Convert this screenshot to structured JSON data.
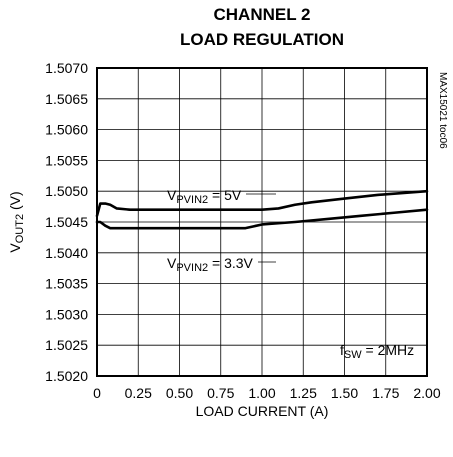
{
  "chart_data": {
    "type": "line",
    "title": [
      "CHANNEL 2",
      "LOAD REGULATION"
    ],
    "xlabel": "LOAD CURRENT (A)",
    "ylabel": {
      "main": "V",
      "sub": "OUT2",
      "unit": " (V)"
    },
    "xlim": [
      0,
      2.0
    ],
    "ylim": [
      1.502,
      1.507
    ],
    "xticks": [
      0,
      0.25,
      0.5,
      0.75,
      1.0,
      1.25,
      1.5,
      1.75,
      2.0
    ],
    "xtick_labels": [
      "0",
      "0.25",
      "0.50",
      "0.75",
      "1.00",
      "1.25",
      "1.50",
      "1.75",
      "2.00"
    ],
    "yticks": [
      1.502,
      1.5025,
      1.503,
      1.5035,
      1.504,
      1.5045,
      1.505,
      1.5055,
      1.506,
      1.5065,
      1.507
    ],
    "ytick_labels": [
      "1.5020",
      "1.5025",
      "1.5030",
      "1.5035",
      "1.5040",
      "1.5045",
      "1.5050",
      "1.5055",
      "1.5060",
      "1.5065",
      "1.5070"
    ],
    "grid": true,
    "series": [
      {
        "name": "5V",
        "x": [
          0,
          0.02,
          0.05,
          0.08,
          0.12,
          0.2,
          0.4,
          0.6,
          0.8,
          1.0,
          1.1,
          1.2,
          1.3,
          1.5,
          1.7,
          1.9,
          2.0
        ],
        "y": [
          1.5046,
          1.5048,
          1.5048,
          1.50478,
          1.50472,
          1.5047,
          1.5047,
          1.5047,
          1.5047,
          1.5047,
          1.50472,
          1.50478,
          1.50482,
          1.50488,
          1.50494,
          1.50498,
          1.505
        ]
      },
      {
        "name": "3.3V",
        "x": [
          0,
          0.02,
          0.05,
          0.08,
          0.2,
          0.5,
          0.8,
          0.9,
          1.0,
          1.2,
          1.4,
          1.6,
          1.8,
          2.0
        ],
        "y": [
          1.5045,
          1.5045,
          1.50444,
          1.5044,
          1.5044,
          1.5044,
          1.5044,
          1.5044,
          1.50446,
          1.5045,
          1.50455,
          1.5046,
          1.50465,
          1.5047
        ]
      }
    ],
    "annotations": {
      "series1_label": {
        "pre": "V",
        "sub": "PVIN2",
        "post": " = 5V"
      },
      "series2_label": {
        "pre": "V",
        "sub": "PVIN2",
        "post": " = 3.3V"
      },
      "fsw": {
        "pre": "f",
        "sub": "SW",
        "post": " = 2MHz"
      },
      "code": "MAX15021 toc06"
    }
  }
}
